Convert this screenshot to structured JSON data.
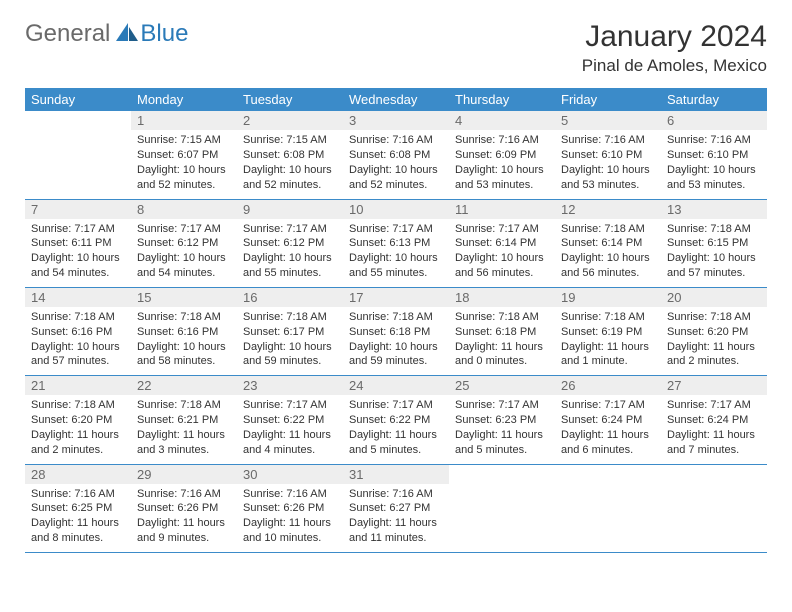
{
  "logo": {
    "text_general": "General",
    "text_blue": "Blue"
  },
  "title": "January 2024",
  "location": "Pinal de Amoles, Mexico",
  "colors": {
    "header_bg": "#3b8bc9",
    "header_text": "#ffffff",
    "daynum_bg": "#eeeeee",
    "daynum_text": "#6a6a6a",
    "body_text": "#333333",
    "row_border": "#3b8bc9",
    "logo_gray": "#6a6a6a",
    "logo_blue": "#2a7ab8",
    "page_bg": "#ffffff"
  },
  "fonts": {
    "title_size_pt": 22,
    "location_size_pt": 13,
    "header_size_pt": 10,
    "daynum_size_pt": 10,
    "content_size_pt": 8
  },
  "weekdays": [
    "Sunday",
    "Monday",
    "Tuesday",
    "Wednesday",
    "Thursday",
    "Friday",
    "Saturday"
  ],
  "weeks": [
    [
      {
        "day": "",
        "sunrise": "",
        "sunset": "",
        "daylight": ""
      },
      {
        "day": "1",
        "sunrise": "Sunrise: 7:15 AM",
        "sunset": "Sunset: 6:07 PM",
        "daylight": "Daylight: 10 hours and 52 minutes."
      },
      {
        "day": "2",
        "sunrise": "Sunrise: 7:15 AM",
        "sunset": "Sunset: 6:08 PM",
        "daylight": "Daylight: 10 hours and 52 minutes."
      },
      {
        "day": "3",
        "sunrise": "Sunrise: 7:16 AM",
        "sunset": "Sunset: 6:08 PM",
        "daylight": "Daylight: 10 hours and 52 minutes."
      },
      {
        "day": "4",
        "sunrise": "Sunrise: 7:16 AM",
        "sunset": "Sunset: 6:09 PM",
        "daylight": "Daylight: 10 hours and 53 minutes."
      },
      {
        "day": "5",
        "sunrise": "Sunrise: 7:16 AM",
        "sunset": "Sunset: 6:10 PM",
        "daylight": "Daylight: 10 hours and 53 minutes."
      },
      {
        "day": "6",
        "sunrise": "Sunrise: 7:16 AM",
        "sunset": "Sunset: 6:10 PM",
        "daylight": "Daylight: 10 hours and 53 minutes."
      }
    ],
    [
      {
        "day": "7",
        "sunrise": "Sunrise: 7:17 AM",
        "sunset": "Sunset: 6:11 PM",
        "daylight": "Daylight: 10 hours and 54 minutes."
      },
      {
        "day": "8",
        "sunrise": "Sunrise: 7:17 AM",
        "sunset": "Sunset: 6:12 PM",
        "daylight": "Daylight: 10 hours and 54 minutes."
      },
      {
        "day": "9",
        "sunrise": "Sunrise: 7:17 AM",
        "sunset": "Sunset: 6:12 PM",
        "daylight": "Daylight: 10 hours and 55 minutes."
      },
      {
        "day": "10",
        "sunrise": "Sunrise: 7:17 AM",
        "sunset": "Sunset: 6:13 PM",
        "daylight": "Daylight: 10 hours and 55 minutes."
      },
      {
        "day": "11",
        "sunrise": "Sunrise: 7:17 AM",
        "sunset": "Sunset: 6:14 PM",
        "daylight": "Daylight: 10 hours and 56 minutes."
      },
      {
        "day": "12",
        "sunrise": "Sunrise: 7:18 AM",
        "sunset": "Sunset: 6:14 PM",
        "daylight": "Daylight: 10 hours and 56 minutes."
      },
      {
        "day": "13",
        "sunrise": "Sunrise: 7:18 AM",
        "sunset": "Sunset: 6:15 PM",
        "daylight": "Daylight: 10 hours and 57 minutes."
      }
    ],
    [
      {
        "day": "14",
        "sunrise": "Sunrise: 7:18 AM",
        "sunset": "Sunset: 6:16 PM",
        "daylight": "Daylight: 10 hours and 57 minutes."
      },
      {
        "day": "15",
        "sunrise": "Sunrise: 7:18 AM",
        "sunset": "Sunset: 6:16 PM",
        "daylight": "Daylight: 10 hours and 58 minutes."
      },
      {
        "day": "16",
        "sunrise": "Sunrise: 7:18 AM",
        "sunset": "Sunset: 6:17 PM",
        "daylight": "Daylight: 10 hours and 59 minutes."
      },
      {
        "day": "17",
        "sunrise": "Sunrise: 7:18 AM",
        "sunset": "Sunset: 6:18 PM",
        "daylight": "Daylight: 10 hours and 59 minutes."
      },
      {
        "day": "18",
        "sunrise": "Sunrise: 7:18 AM",
        "sunset": "Sunset: 6:18 PM",
        "daylight": "Daylight: 11 hours and 0 minutes."
      },
      {
        "day": "19",
        "sunrise": "Sunrise: 7:18 AM",
        "sunset": "Sunset: 6:19 PM",
        "daylight": "Daylight: 11 hours and 1 minute."
      },
      {
        "day": "20",
        "sunrise": "Sunrise: 7:18 AM",
        "sunset": "Sunset: 6:20 PM",
        "daylight": "Daylight: 11 hours and 2 minutes."
      }
    ],
    [
      {
        "day": "21",
        "sunrise": "Sunrise: 7:18 AM",
        "sunset": "Sunset: 6:20 PM",
        "daylight": "Daylight: 11 hours and 2 minutes."
      },
      {
        "day": "22",
        "sunrise": "Sunrise: 7:18 AM",
        "sunset": "Sunset: 6:21 PM",
        "daylight": "Daylight: 11 hours and 3 minutes."
      },
      {
        "day": "23",
        "sunrise": "Sunrise: 7:17 AM",
        "sunset": "Sunset: 6:22 PM",
        "daylight": "Daylight: 11 hours and 4 minutes."
      },
      {
        "day": "24",
        "sunrise": "Sunrise: 7:17 AM",
        "sunset": "Sunset: 6:22 PM",
        "daylight": "Daylight: 11 hours and 5 minutes."
      },
      {
        "day": "25",
        "sunrise": "Sunrise: 7:17 AM",
        "sunset": "Sunset: 6:23 PM",
        "daylight": "Daylight: 11 hours and 5 minutes."
      },
      {
        "day": "26",
        "sunrise": "Sunrise: 7:17 AM",
        "sunset": "Sunset: 6:24 PM",
        "daylight": "Daylight: 11 hours and 6 minutes."
      },
      {
        "day": "27",
        "sunrise": "Sunrise: 7:17 AM",
        "sunset": "Sunset: 6:24 PM",
        "daylight": "Daylight: 11 hours and 7 minutes."
      }
    ],
    [
      {
        "day": "28",
        "sunrise": "Sunrise: 7:16 AM",
        "sunset": "Sunset: 6:25 PM",
        "daylight": "Daylight: 11 hours and 8 minutes."
      },
      {
        "day": "29",
        "sunrise": "Sunrise: 7:16 AM",
        "sunset": "Sunset: 6:26 PM",
        "daylight": "Daylight: 11 hours and 9 minutes."
      },
      {
        "day": "30",
        "sunrise": "Sunrise: 7:16 AM",
        "sunset": "Sunset: 6:26 PM",
        "daylight": "Daylight: 11 hours and 10 minutes."
      },
      {
        "day": "31",
        "sunrise": "Sunrise: 7:16 AM",
        "sunset": "Sunset: 6:27 PM",
        "daylight": "Daylight: 11 hours and 11 minutes."
      },
      {
        "day": "",
        "sunrise": "",
        "sunset": "",
        "daylight": ""
      },
      {
        "day": "",
        "sunrise": "",
        "sunset": "",
        "daylight": ""
      },
      {
        "day": "",
        "sunrise": "",
        "sunset": "",
        "daylight": ""
      }
    ]
  ]
}
